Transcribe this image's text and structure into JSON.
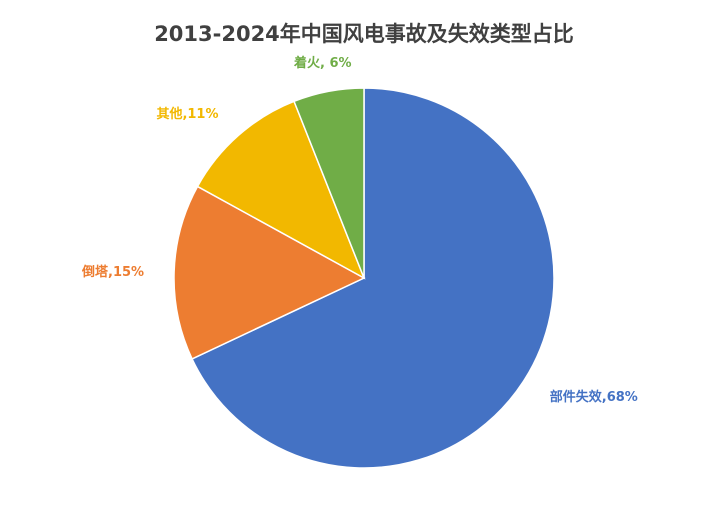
{
  "chart_data": {
    "type": "pie",
    "title": "2013-2024年中国风电事故及失效类型占比",
    "start_angle_deg": 0,
    "direction": "clockwise",
    "slices": [
      {
        "name": "部件失效",
        "value": 68,
        "label": "部件失效,68%",
        "color": "#4472C4"
      },
      {
        "name": "倒塔",
        "value": 15,
        "label": "倒塔,15%",
        "color": "#ED7D31"
      },
      {
        "name": "其他",
        "value": 11,
        "label": "其他,11%",
        "color": "#F2B800"
      },
      {
        "name": "着火",
        "value": 6,
        "label": "着火, 6%",
        "color": "#70AD47"
      }
    ],
    "legend": "none",
    "data_labels": "outside"
  }
}
